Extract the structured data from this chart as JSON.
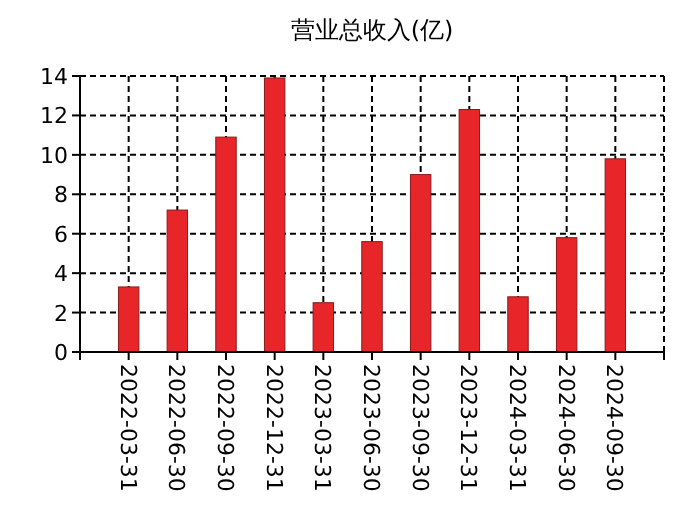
{
  "chart_data": {
    "type": "bar",
    "title": "营业总收入(亿)",
    "categories": [
      "2022-03-31",
      "2022-06-30",
      "2022-09-30",
      "2022-12-31",
      "2023-03-31",
      "2023-06-30",
      "2023-09-30",
      "2023-12-31",
      "2024-03-31",
      "2024-06-30",
      "2024-09-30"
    ],
    "values": [
      3.3,
      7.2,
      10.9,
      13.9,
      2.5,
      5.6,
      9.0,
      12.3,
      2.8,
      5.8,
      9.8
    ],
    "color": "#e8262a",
    "ylim": [
      0,
      14
    ],
    "yticks": [
      0,
      2,
      4,
      6,
      8,
      10,
      12,
      14
    ],
    "grid": true
  }
}
